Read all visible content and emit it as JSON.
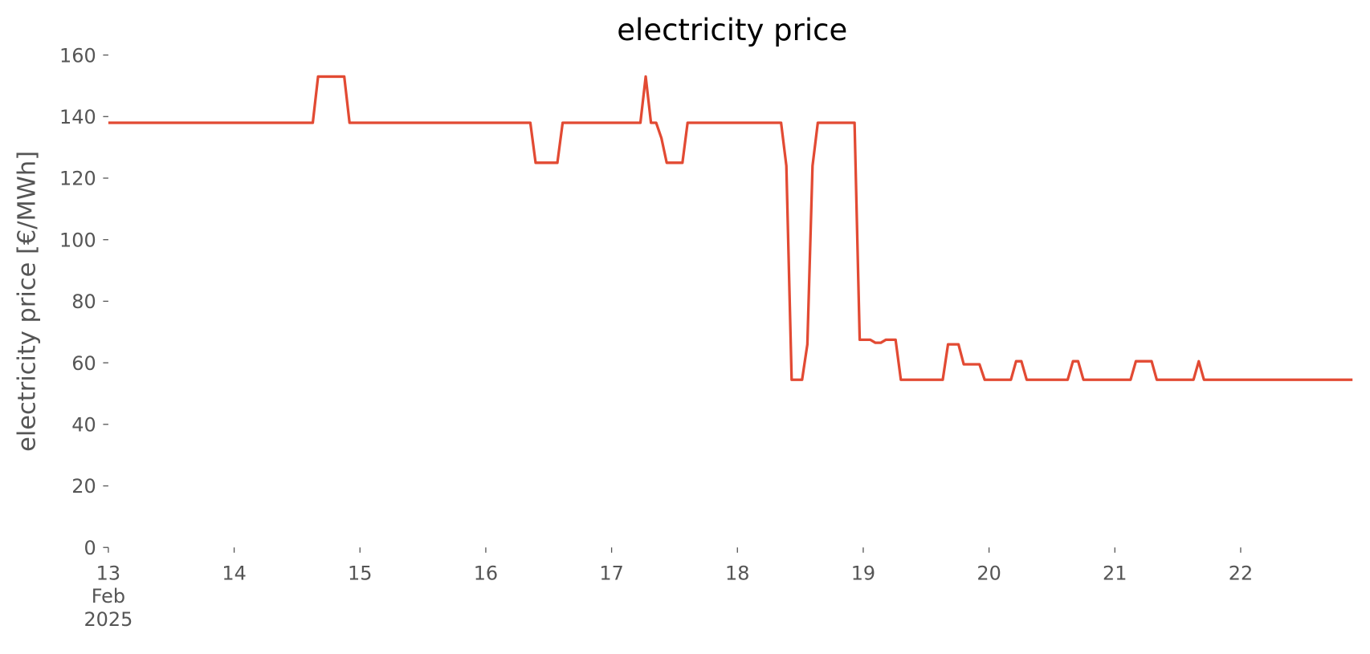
{
  "chart_data": {
    "type": "line",
    "title": "electricity price",
    "ylabel": "electricity price [€/MWh]",
    "x": [
      13,
      14.625,
      14.667,
      14.875,
      14.917,
      16.354,
      16.396,
      16.569,
      16.611,
      17.229,
      17.271,
      17.313,
      17.354,
      17.396,
      17.438,
      17.563,
      17.604,
      18.347,
      18.389,
      18.431,
      18.514,
      18.556,
      18.597,
      18.639,
      18.931,
      18.972,
      19.056,
      19.097,
      19.139,
      19.181,
      19.257,
      19.299,
      19.632,
      19.674,
      19.757,
      19.799,
      19.924,
      19.965,
      20.174,
      20.215,
      20.257,
      20.299,
      20.625,
      20.667,
      20.708,
      20.75,
      21.125,
      21.167,
      21.292,
      21.333,
      21.625,
      21.667,
      21.708,
      22.889
    ],
    "series": [
      {
        "name": "electricity price",
        "color": "#e24a33",
        "values": [
          138,
          138,
          153,
          153,
          138,
          138,
          125,
          125,
          138,
          138,
          153,
          138,
          138,
          133,
          125,
          125,
          138,
          138,
          124,
          54.5,
          54.5,
          66,
          124,
          138,
          138,
          67.5,
          67.5,
          66.5,
          66.5,
          67.5,
          67.5,
          54.5,
          54.5,
          66,
          66,
          59.5,
          59.5,
          54.5,
          54.5,
          60.5,
          60.5,
          54.5,
          54.5,
          60.5,
          60.5,
          54.5,
          54.5,
          60.5,
          60.5,
          54.5,
          54.5,
          60.5,
          54.5,
          54.5
        ]
      }
    ],
    "xlim": [
      13,
      22.889
    ],
    "xticks": [
      {
        "value": 13,
        "label": "13\nFeb\n2025"
      },
      14,
      15,
      16,
      17,
      18,
      19,
      20,
      21,
      22
    ],
    "ylim": [
      0,
      160
    ],
    "yticks": [
      0,
      20,
      40,
      60,
      80,
      100,
      120,
      140,
      160
    ],
    "grid": false
  }
}
